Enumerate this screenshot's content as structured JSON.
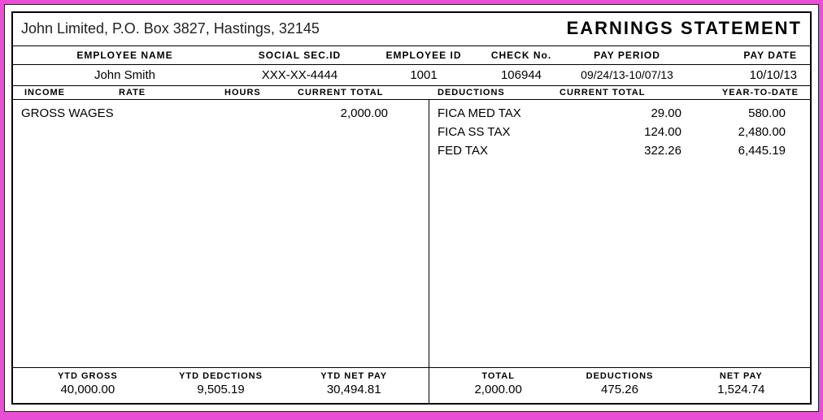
{
  "company": "John Limited, P.O. Box 3827, Hastings, 32145",
  "title": "EARNINGS  STATEMENT",
  "empHdr": {
    "name": "EMPLOYEE  NAME",
    "ssid": "SOCIAL  SEC.ID",
    "empid": "EMPLOYEE  ID",
    "check": "CHECK  No.",
    "period": "PAY  PERIOD",
    "pdate": "PAY  DATE"
  },
  "emp": {
    "name": "John Smith",
    "ssid": "XXX-XX-4444",
    "empid": "1001",
    "check": "106944",
    "period": "09/24/13-10/07/13",
    "pdate": "10/10/13"
  },
  "colHdr": {
    "income": "INCOME",
    "rate": "RATE",
    "hours": "HOURS",
    "ctotal": "CURRENT  TOTAL",
    "ded": "DEDUCTIONS",
    "ctot2": "CURRENT  TOTAL",
    "ytd": "YEAR-TO-DATE"
  },
  "income": [
    {
      "name": "GROSS WAGES",
      "rate": "",
      "hours": "",
      "total": "2,000.00"
    }
  ],
  "deductions": [
    {
      "name": "FICA MED TAX",
      "cur": "29.00",
      "ytd": "580.00"
    },
    {
      "name": "FICA SS TAX",
      "cur": "124.00",
      "ytd": "2,480.00"
    },
    {
      "name": "FED TAX",
      "cur": "322.26",
      "ytd": "6,445.19"
    }
  ],
  "footer": {
    "ytdGrossLabel": "YTD  GROSS",
    "ytdGross": "40,000.00",
    "ytdDedLabel": "YTD  DEDCTIONS",
    "ytdDed": "9,505.19",
    "ytdNetLabel": "YTD  NET  PAY",
    "ytdNet": "30,494.81",
    "totalLabel": "TOTAL",
    "total": "2,000.00",
    "dedLabel": "DEDUCTIONS",
    "ded": "475.26",
    "netLabel": "NET  PAY",
    "net": "1,524.74"
  }
}
